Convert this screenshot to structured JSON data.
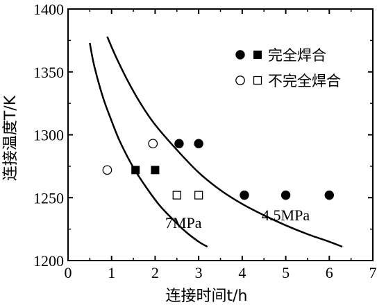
{
  "chart_data": {
    "type": "scatter",
    "xlabel": "连接时间t/h",
    "ylabel": "连接温度T/K",
    "xlim": [
      0,
      7
    ],
    "ylim": [
      1200,
      1400
    ],
    "xticks": [
      "0",
      "1",
      "2",
      "3",
      "4",
      "5",
      "6",
      "7"
    ],
    "yticks": [
      "1200",
      "1250",
      "1300",
      "1350",
      "1400"
    ],
    "grid": false,
    "legend_position": "top-right",
    "legend": [
      {
        "label": "完全焊合",
        "markers": [
          "filled-circle",
          "filled-square"
        ]
      },
      {
        "label": "不完全焊合",
        "markers": [
          "open-circle",
          "open-square"
        ]
      }
    ],
    "series": [
      {
        "marker": "filled-circle",
        "points": [
          {
            "x": 2.55,
            "y": 1293
          },
          {
            "x": 3.0,
            "y": 1293
          },
          {
            "x": 4.05,
            "y": 1252
          },
          {
            "x": 5.0,
            "y": 1252
          },
          {
            "x": 6.0,
            "y": 1252
          }
        ]
      },
      {
        "marker": "filled-square",
        "points": [
          {
            "x": 1.55,
            "y": 1272
          },
          {
            "x": 2.0,
            "y": 1272
          }
        ]
      },
      {
        "marker": "open-circle",
        "points": [
          {
            "x": 0.9,
            "y": 1272
          },
          {
            "x": 1.95,
            "y": 1293
          }
        ]
      },
      {
        "marker": "open-square",
        "points": [
          {
            "x": 2.5,
            "y": 1252
          },
          {
            "x": 3.0,
            "y": 1252
          }
        ]
      }
    ],
    "curves": [
      {
        "label": "7MPa",
        "points": [
          [
            0.5,
            1373
          ],
          [
            0.6,
            1355
          ],
          [
            0.8,
            1330
          ],
          [
            1.0,
            1311
          ],
          [
            1.2,
            1294
          ],
          [
            1.5,
            1274
          ],
          [
            1.8,
            1258
          ],
          [
            2.1,
            1244
          ],
          [
            2.4,
            1233
          ],
          [
            2.7,
            1223
          ],
          [
            3.0,
            1215
          ],
          [
            3.2,
            1211
          ]
        ]
      },
      {
        "label": "4.5MPa",
        "points": [
          [
            0.9,
            1378
          ],
          [
            1.1,
            1362
          ],
          [
            1.4,
            1341
          ],
          [
            1.7,
            1323
          ],
          [
            2.0,
            1308
          ],
          [
            2.5,
            1288
          ],
          [
            3.0,
            1270
          ],
          [
            3.5,
            1256
          ],
          [
            4.0,
            1245
          ],
          [
            4.5,
            1236
          ],
          [
            5.0,
            1228
          ],
          [
            5.5,
            1221
          ],
          [
            6.0,
            1215
          ],
          [
            6.3,
            1211
          ]
        ]
      }
    ]
  }
}
